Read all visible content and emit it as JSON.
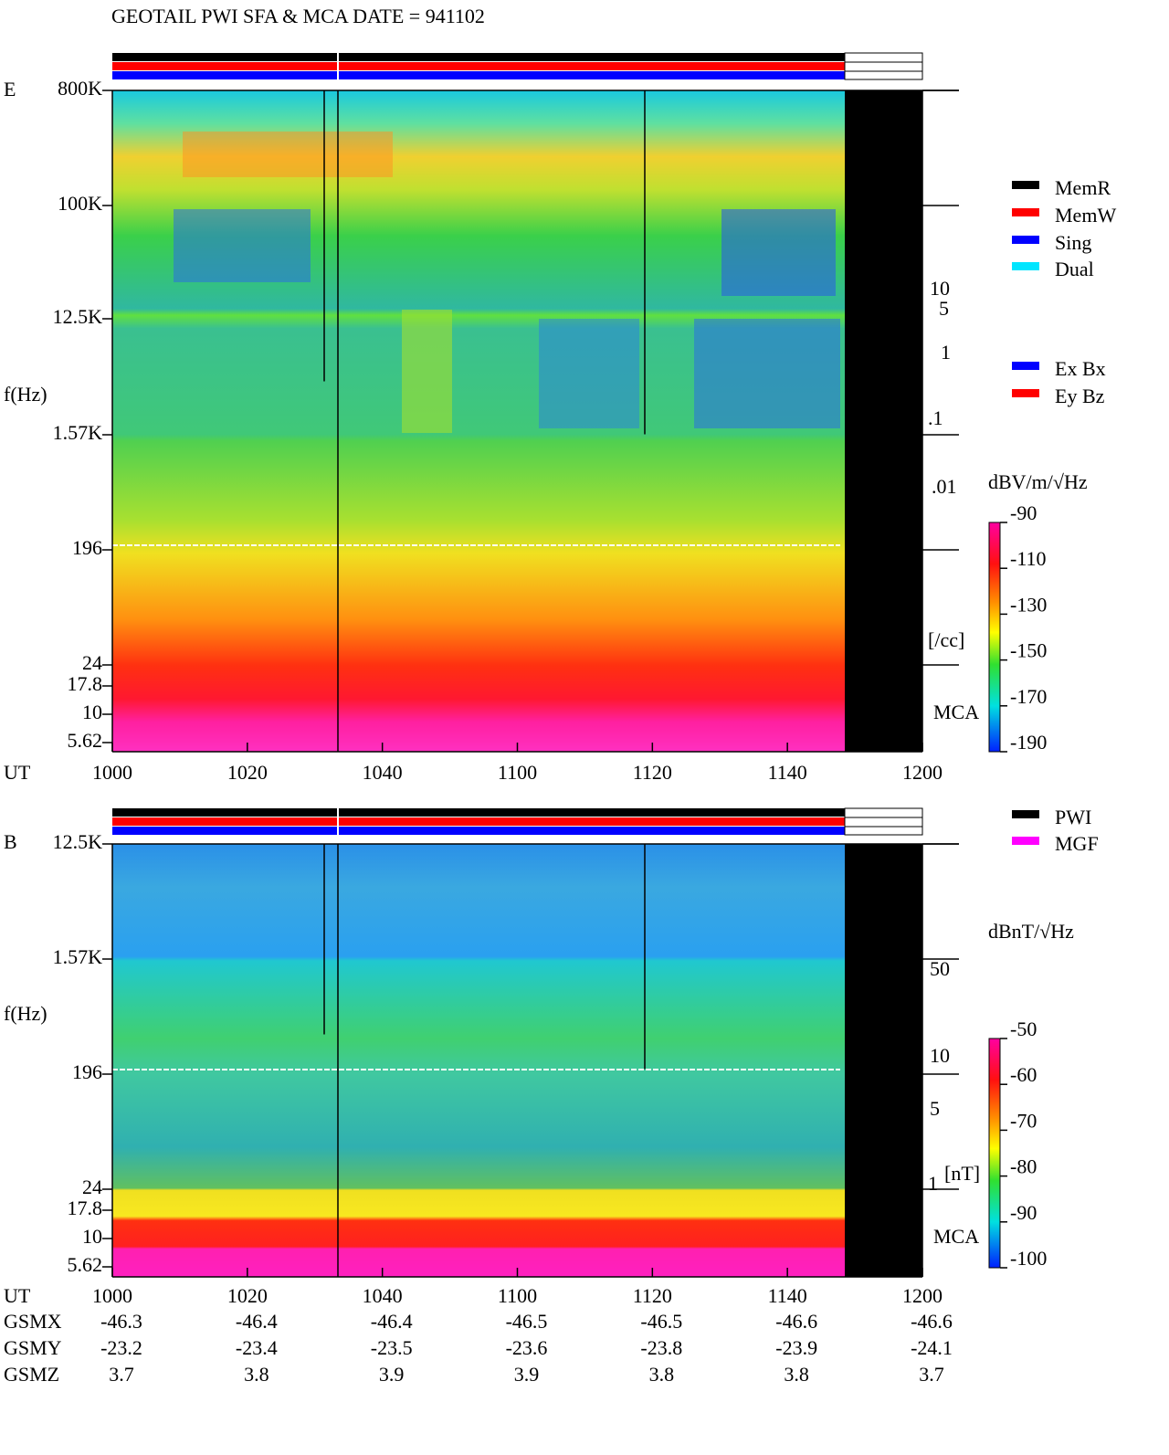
{
  "title": "GEOTAIL  PWI SFA & MCA   DATE = 941102",
  "panels": [
    {
      "label": "E",
      "ylabel": "f(Hz)",
      "yticks": [
        "800K",
        "100K",
        "12.5K",
        "1.57K",
        "196",
        "24",
        "17.8",
        "10",
        "5.62"
      ],
      "xlabel": "UT",
      "xticks": [
        "1000",
        "1020",
        "1040",
        "1100",
        "1120",
        "1140",
        "1200"
      ],
      "right_labels": [
        "10",
        "5",
        "1",
        ".1",
        ".01",
        "[/cc]"
      ],
      "mca": "MCA",
      "legend": [
        {
          "name": "MemR",
          "color": "#000000"
        },
        {
          "name": "MemW",
          "color": "#ff0000"
        },
        {
          "name": "Sing",
          "color": "#0000ff"
        },
        {
          "name": "Dual",
          "color": "#00e5ff"
        },
        {
          "name": "Ex Bx",
          "color": "#0000ff"
        },
        {
          "name": "Ey Bz",
          "color": "#ff0000"
        }
      ],
      "colorbar_title": "dBV/m/√Hz",
      "colorbar_ticks": [
        -90,
        -110,
        -130,
        -150,
        -170,
        -190
      ]
    },
    {
      "label": "B",
      "ylabel": "f(Hz)",
      "yticks": [
        "12.5K",
        "1.57K",
        "196",
        "24",
        "17.8",
        "10",
        "5.62"
      ],
      "xlabel": "UT",
      "xticks": [
        "1000",
        "1020",
        "1040",
        "1100",
        "1120",
        "1140",
        "1200"
      ],
      "right_labels": [
        "50",
        "10",
        "5",
        "1",
        "[nT]"
      ],
      "mca": "MCA",
      "legend": [
        {
          "name": "PWI",
          "color": "#000000"
        },
        {
          "name": "MGF",
          "color": "#ff00ff"
        }
      ],
      "colorbar_title": "dBnT/√Hz",
      "colorbar_ticks": [
        -50,
        -60,
        -70,
        -80,
        -90,
        -100
      ]
    }
  ],
  "orbit": [
    {
      "name": "GSMX",
      "values": [
        "-46.3",
        "-46.4",
        "-46.4",
        "-46.5",
        "-46.5",
        "-46.6",
        "-46.6"
      ]
    },
    {
      "name": "GSMY",
      "values": [
        "-23.2",
        "-23.4",
        "-23.5",
        "-23.6",
        "-23.8",
        "-23.9",
        "-24.1"
      ]
    },
    {
      "name": "GSMZ",
      "values": [
        "3.7",
        "3.8",
        "3.9",
        "3.9",
        "3.8",
        "3.8",
        "3.7"
      ]
    }
  ]
}
